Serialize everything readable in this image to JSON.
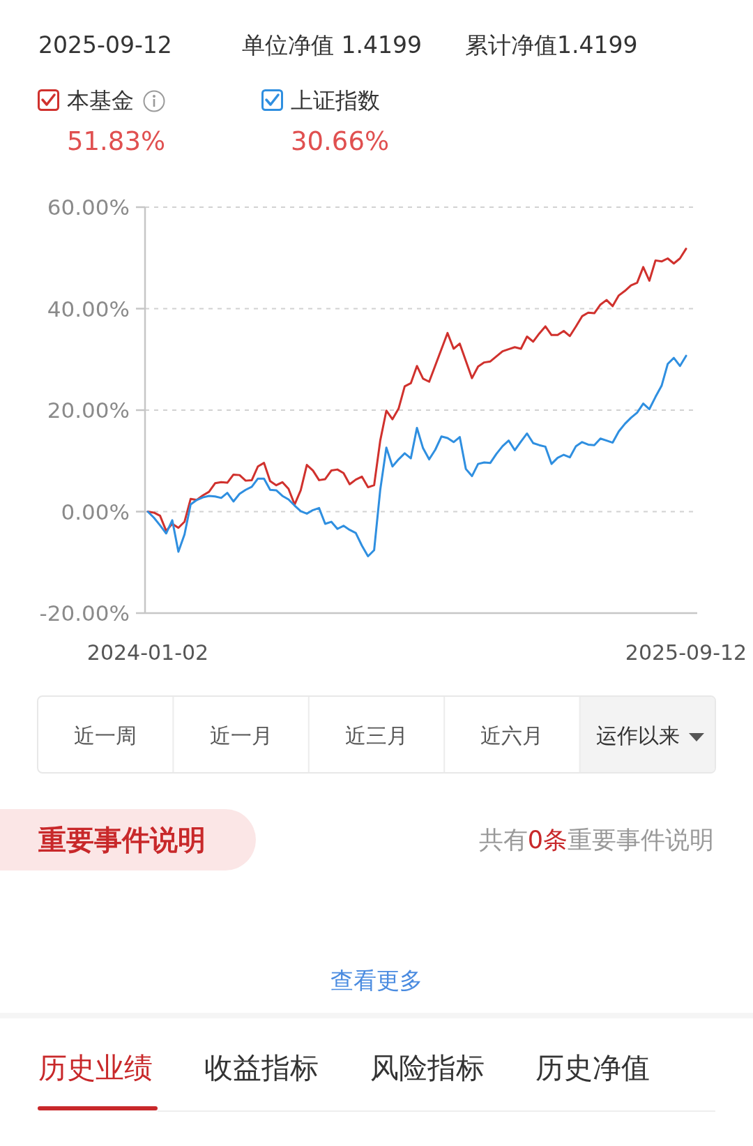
{
  "chart_data": [
    {
      "type": "line",
      "annotations": [
        "2025-09-12",
        "单位净值 1.4199",
        "累计净值1.4199",
        "51.83%",
        "30.66%"
      ],
      "categories": [
        "2024-01-02",
        null,
        null,
        null,
        null,
        null,
        null,
        null,
        null,
        null,
        null,
        null,
        null,
        null,
        null,
        null,
        null,
        null,
        null,
        null,
        null,
        null,
        null,
        null,
        null,
        null,
        null,
        null,
        null,
        null,
        null,
        null,
        null,
        null,
        null,
        null,
        null,
        null,
        null,
        null,
        null,
        null,
        null,
        null,
        null,
        null,
        null,
        null,
        null,
        null,
        null,
        null,
        null,
        null,
        null,
        null,
        null,
        null,
        null,
        null,
        null,
        null,
        null,
        null,
        null,
        null,
        null,
        null,
        null,
        null,
        null,
        null,
        null,
        null,
        null,
        null,
        null,
        null,
        null,
        null,
        null,
        null,
        null,
        null,
        null,
        null,
        null,
        null,
        "2025-09-12"
      ],
      "series": [
        {
          "name": "本基金",
          "color": "#d0312d",
          "values": [
            0,
            -0.2,
            -0.8,
            -3.8,
            -2.4,
            -3.2,
            -2.0,
            2.5,
            2.3,
            3.2,
            3.9,
            5.6,
            5.8,
            5.7,
            7.3,
            7.2,
            6.1,
            6.2,
            8.9,
            9.6,
            6.0,
            5.2,
            5.8,
            4.5,
            1.4,
            4.2,
            9.2,
            8.1,
            6.2,
            6.4,
            8.1,
            8.3,
            7.6,
            5.4,
            6.3,
            6.9,
            4.8,
            5.2,
            14.0,
            19.9,
            18.2,
            20.3,
            24.7,
            25.3,
            28.7,
            26.2,
            25.6,
            28.8,
            32.0,
            35.2,
            32.1,
            33.1,
            29.7,
            26.3,
            28.6,
            29.4,
            29.6,
            30.6,
            31.6,
            32.0,
            32.4,
            32.1,
            34.5,
            33.5,
            35.1,
            36.5,
            34.8,
            34.8,
            35.6,
            34.6,
            36.5,
            38.5,
            39.2,
            39.1,
            40.8,
            41.7,
            40.5,
            42.6,
            43.5,
            44.6,
            45.1,
            48.2,
            45.5,
            49.5,
            49.3,
            49.9,
            48.9,
            49.9,
            51.8
          ]
        },
        {
          "name": "上证指数",
          "color": "#2f8fe0",
          "values": [
            0,
            -1.2,
            -2.7,
            -4.3,
            -1.7,
            -7.9,
            -4.5,
            1.4,
            2.3,
            2.8,
            3.1,
            3.0,
            2.7,
            3.7,
            2.0,
            3.5,
            4.3,
            4.9,
            6.5,
            6.5,
            4.3,
            4.2,
            3.1,
            2.4,
            1.2,
            0.1,
            -0.4,
            0.3,
            0.7,
            -2.4,
            -2.0,
            -3.4,
            -2.8,
            -3.6,
            -4.2,
            -6.7,
            -8.8,
            -7.6,
            4.3,
            12.6,
            8.9,
            10.3,
            11.5,
            10.5,
            16.5,
            12.5,
            10.3,
            12.2,
            14.8,
            14.5,
            13.7,
            14.7,
            8.4,
            7.0,
            9.4,
            9.7,
            9.6,
            11.4,
            12.9,
            14.0,
            12.1,
            13.8,
            15.4,
            13.5,
            13.1,
            12.8,
            9.4,
            10.6,
            11.2,
            10.7,
            12.9,
            13.7,
            13.2,
            13.1,
            14.4,
            14.0,
            13.6,
            15.8,
            17.3,
            18.5,
            19.5,
            21.3,
            20.2,
            22.6,
            24.8,
            29.1,
            30.3,
            28.7,
            30.7
          ]
        }
      ],
      "ylim": [
        -20,
        60
      ],
      "yticks": [
        {
          "value": -20,
          "label": "-20.00%"
        },
        {
          "value": 0,
          "label": "0.00%"
        },
        {
          "value": 20,
          "label": "20.00%"
        },
        {
          "value": 40,
          "label": "40.00%"
        },
        {
          "value": 60,
          "label": "60.00%"
        }
      ],
      "grid": "y",
      "legend": "top left"
    },
    {
      "type": "other",
      "annotations": [
        "近一周",
        "近一月",
        "近三月",
        "近六月",
        "运作以来",
        "重要事件说明",
        "共有",
        "0条",
        "重要事件说明",
        "查看更多",
        "历史业绩",
        "收益指标",
        "风险指标",
        "历史净值"
      ]
    }
  ]
}
